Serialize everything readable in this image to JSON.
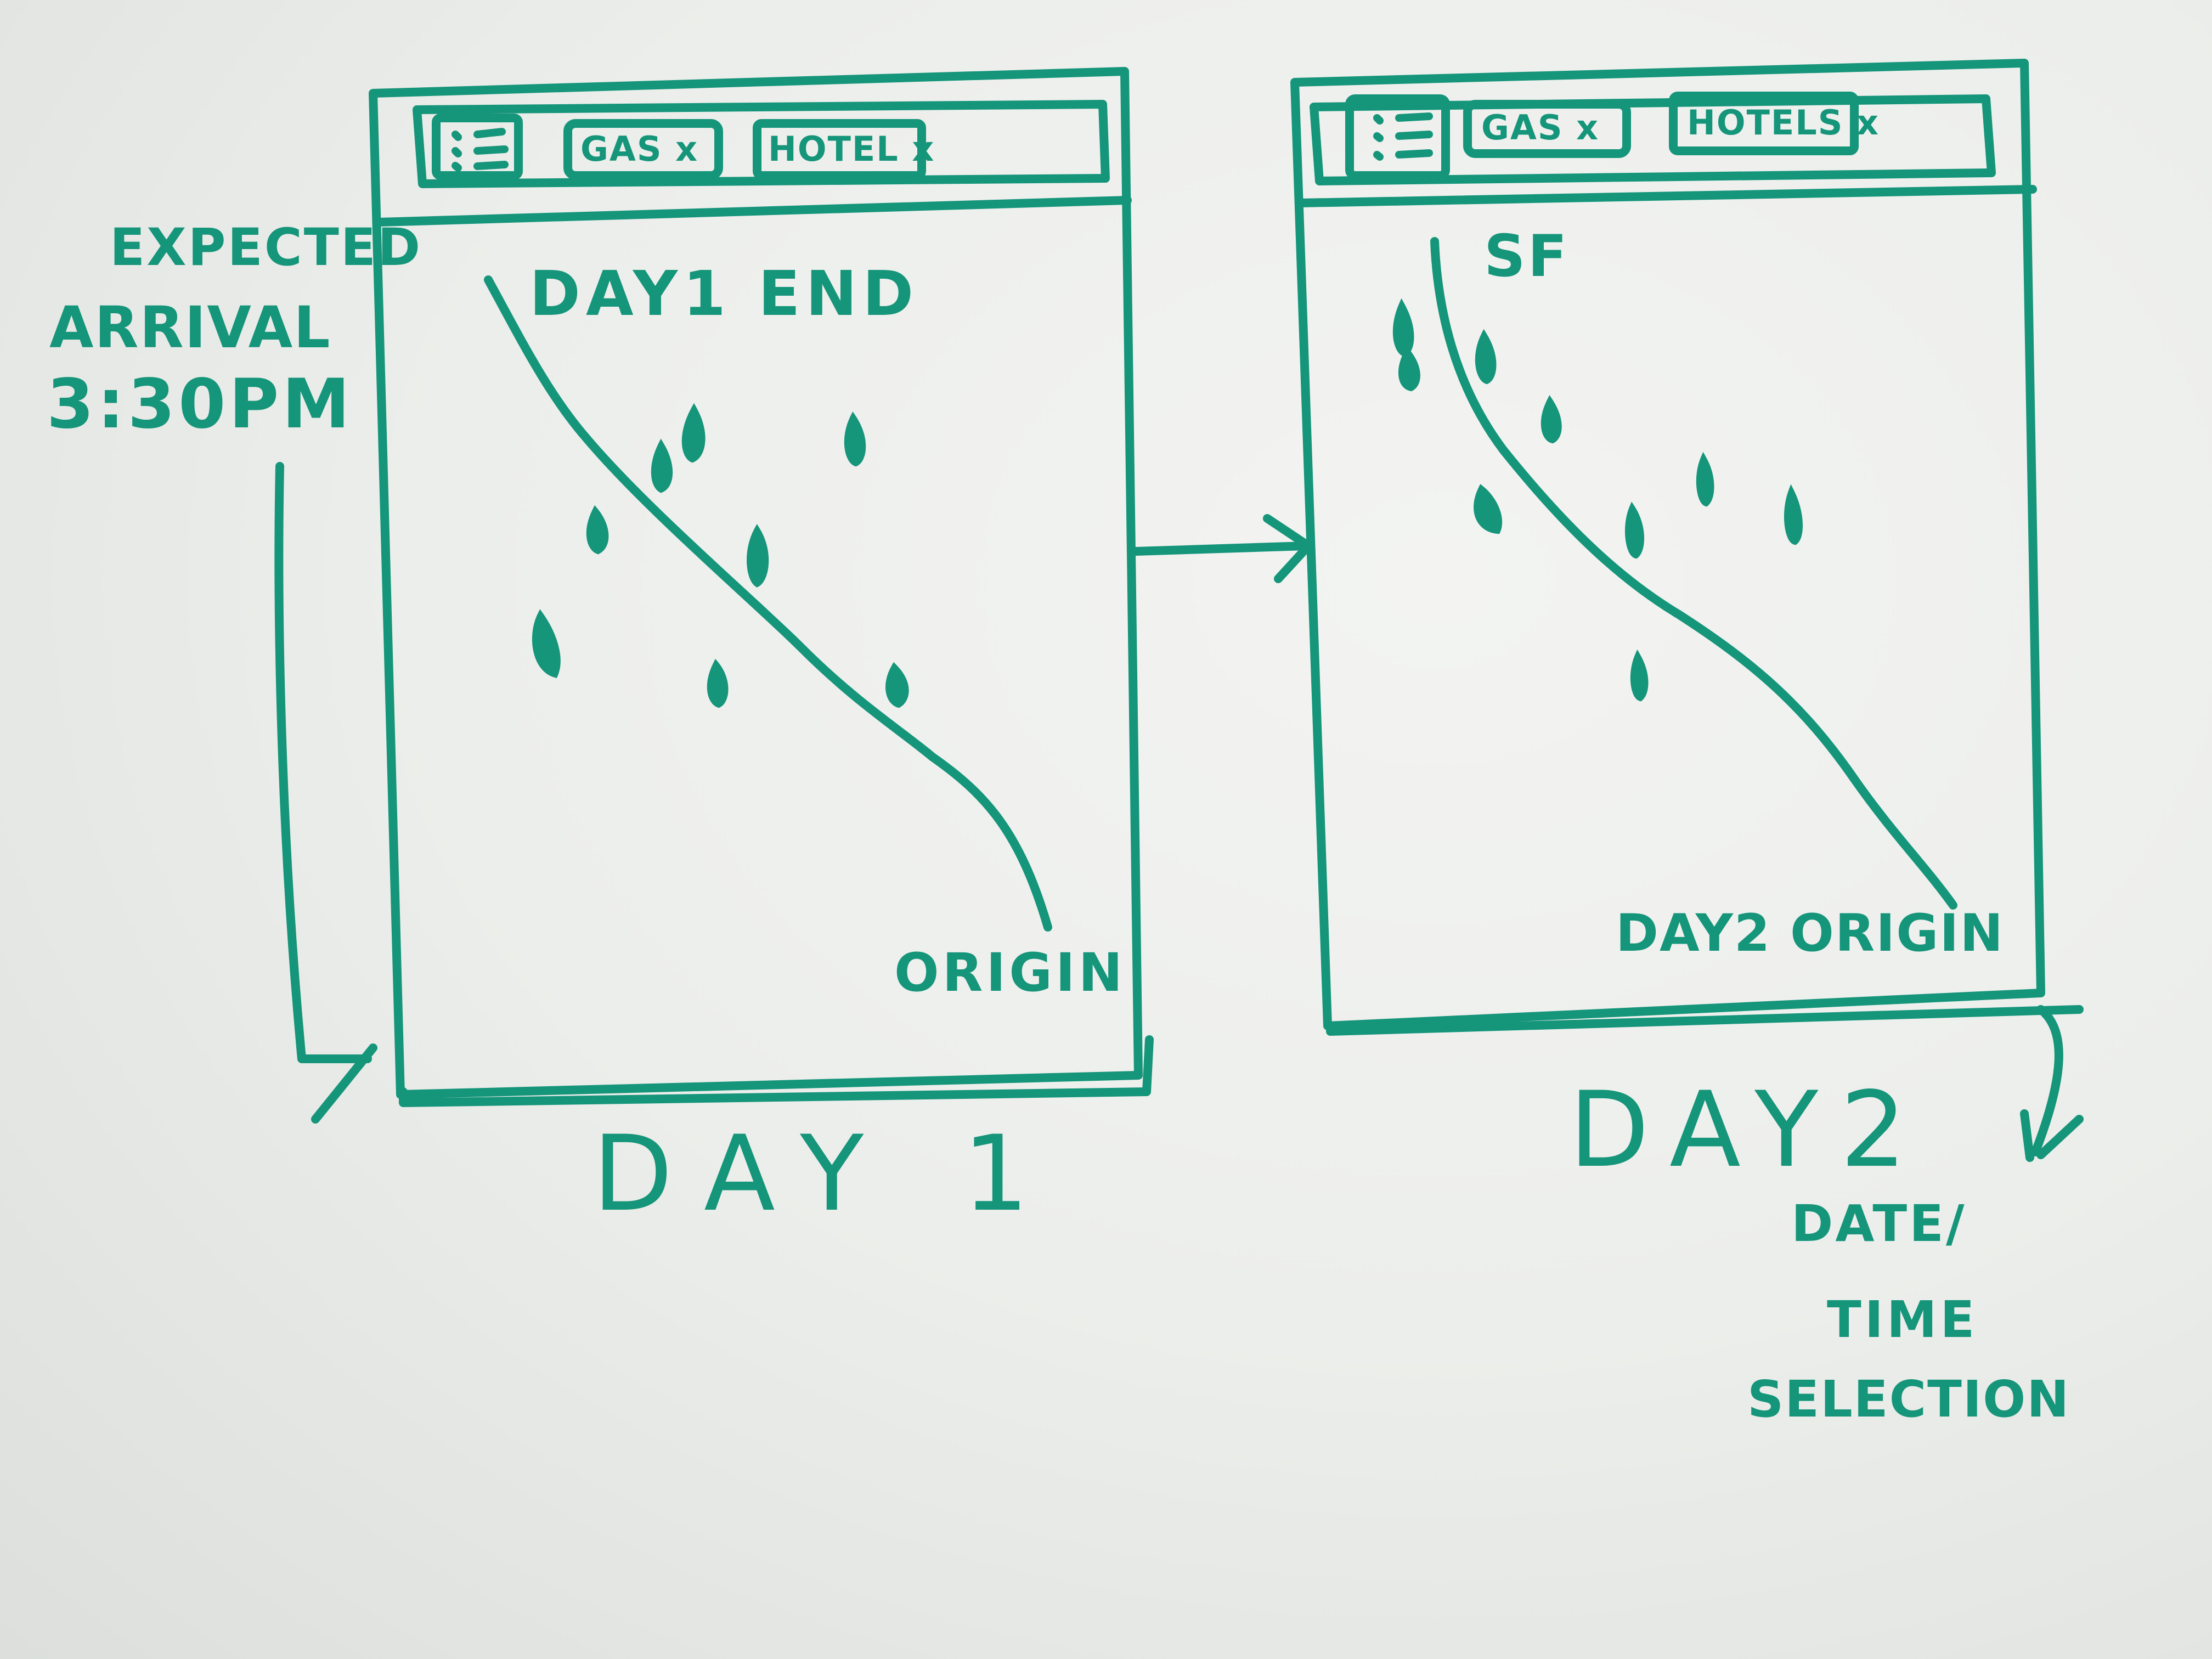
{
  "annotations": {
    "expected_arrival_line1": "EXPECTED",
    "expected_arrival_line2": "ARRIVAL",
    "expected_arrival_line3": "3:30PM",
    "date_time_line1": "DATE/",
    "date_time_line2": "TIME",
    "date_time_line3": "SELECTION"
  },
  "screen_day1": {
    "tabs": [
      {
        "label": "GAS x"
      },
      {
        "label": "HOTEL x"
      }
    ],
    "end_label": "DAY1 END",
    "origin_label": "ORIGIN",
    "caption": "DAY 1"
  },
  "screen_day2": {
    "tabs": [
      {
        "label": "GAS x"
      },
      {
        "label": "HOTELS x"
      }
    ],
    "end_label": "SF",
    "origin_label": "DAY2 ORIGIN",
    "caption": "DAY2"
  },
  "colors": {
    "ink": "#15957a",
    "board": "#eceeeb"
  },
  "icons": [
    "list-menu-icon",
    "map-pin-icon",
    "arrow-right-icon",
    "arrow-down-icon"
  ]
}
